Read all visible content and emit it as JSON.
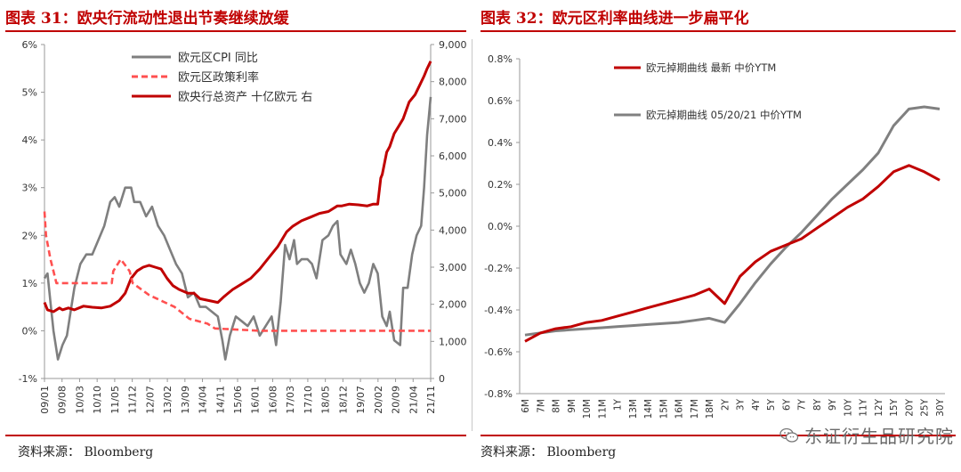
{
  "left": {
    "title": "图表 31：欧央行流动性退出节奏继续放缓",
    "source": "资料来源：  Bloomberg",
    "chart_data": {
      "type": "line",
      "left_axis": {
        "ticks": [
          "6%",
          "5%",
          "4%",
          "3%",
          "2%",
          "1%",
          "0%",
          "-1%"
        ],
        "range": [
          -1,
          6
        ]
      },
      "right_axis": {
        "ticks": [
          "9,000",
          "8,000",
          "7,000",
          "6,000",
          "5,000",
          "4,000",
          "3,000",
          "2,000",
          "1,000",
          "0"
        ],
        "range": [
          0,
          9000
        ]
      },
      "x_ticks": [
        "09/01",
        "09/08",
        "10/03",
        "10/10",
        "11/05",
        "11/12",
        "12/07",
        "13/02",
        "13/09",
        "14/04",
        "14/11",
        "15/06",
        "16/01",
        "16/08",
        "17/03",
        "17/10",
        "18/05",
        "18/12",
        "19/07",
        "20/02",
        "20/09",
        "21/04",
        "21/11"
      ],
      "x_range": [
        2009.0,
        2021.92
      ],
      "colors": {
        "cpi": "#7f7f7f",
        "policy_rate": "#ff5050",
        "assets": "#c00000"
      },
      "series": [
        {
          "name": "欧元区CPI 同比",
          "key": "cpi",
          "axis": "left",
          "style": "solid",
          "points": [
            [
              2009.0,
              1.1
            ],
            [
              2009.1,
              1.2
            ],
            [
              2009.2,
              0.6
            ],
            [
              2009.3,
              0.0
            ],
            [
              2009.45,
              -0.6
            ],
            [
              2009.6,
              -0.3
            ],
            [
              2009.75,
              -0.1
            ],
            [
              2009.9,
              0.5
            ],
            [
              2010.0,
              0.9
            ],
            [
              2010.2,
              1.4
            ],
            [
              2010.4,
              1.6
            ],
            [
              2010.6,
              1.6
            ],
            [
              2010.8,
              1.9
            ],
            [
              2011.0,
              2.2
            ],
            [
              2011.2,
              2.7
            ],
            [
              2011.35,
              2.8
            ],
            [
              2011.5,
              2.6
            ],
            [
              2011.7,
              3.0
            ],
            [
              2011.9,
              3.0
            ],
            [
              2012.0,
              2.7
            ],
            [
              2012.2,
              2.7
            ],
            [
              2012.4,
              2.4
            ],
            [
              2012.6,
              2.6
            ],
            [
              2012.8,
              2.2
            ],
            [
              2013.0,
              2.0
            ],
            [
              2013.2,
              1.7
            ],
            [
              2013.4,
              1.4
            ],
            [
              2013.6,
              1.2
            ],
            [
              2013.8,
              0.7
            ],
            [
              2014.0,
              0.8
            ],
            [
              2014.2,
              0.5
            ],
            [
              2014.4,
              0.5
            ],
            [
              2014.6,
              0.4
            ],
            [
              2014.8,
              0.3
            ],
            [
              2014.95,
              -0.2
            ],
            [
              2015.05,
              -0.6
            ],
            [
              2015.2,
              -0.1
            ],
            [
              2015.4,
              0.3
            ],
            [
              2015.6,
              0.2
            ],
            [
              2015.8,
              0.1
            ],
            [
              2016.0,
              0.3
            ],
            [
              2016.2,
              -0.1
            ],
            [
              2016.4,
              0.1
            ],
            [
              2016.6,
              0.3
            ],
            [
              2016.75,
              -0.3
            ],
            [
              2016.9,
              0.6
            ],
            [
              2017.05,
              1.8
            ],
            [
              2017.2,
              1.5
            ],
            [
              2017.35,
              1.9
            ],
            [
              2017.45,
              1.4
            ],
            [
              2017.6,
              1.5
            ],
            [
              2017.8,
              1.5
            ],
            [
              2017.95,
              1.4
            ],
            [
              2018.1,
              1.1
            ],
            [
              2018.3,
              1.9
            ],
            [
              2018.5,
              2.0
            ],
            [
              2018.65,
              2.2
            ],
            [
              2018.8,
              2.3
            ],
            [
              2018.9,
              1.6
            ],
            [
              2019.1,
              1.4
            ],
            [
              2019.25,
              1.7
            ],
            [
              2019.4,
              1.4
            ],
            [
              2019.55,
              1.0
            ],
            [
              2019.7,
              0.8
            ],
            [
              2019.85,
              1.0
            ],
            [
              2020.0,
              1.4
            ],
            [
              2020.15,
              1.2
            ],
            [
              2020.3,
              0.3
            ],
            [
              2020.45,
              0.1
            ],
            [
              2020.55,
              0.4
            ],
            [
              2020.7,
              -0.2
            ],
            [
              2020.9,
              -0.3
            ],
            [
              2021.0,
              0.9
            ],
            [
              2021.15,
              0.9
            ],
            [
              2021.3,
              1.6
            ],
            [
              2021.45,
              2.0
            ],
            [
              2021.6,
              2.2
            ],
            [
              2021.7,
              3.0
            ],
            [
              2021.8,
              4.1
            ],
            [
              2021.92,
              4.9
            ]
          ]
        },
        {
          "name": "欧元区政策利率",
          "key": "policy_rate",
          "axis": "left",
          "style": "dashed",
          "points": [
            [
              2009.0,
              2.5
            ],
            [
              2009.05,
              2.0
            ],
            [
              2009.2,
              1.5
            ],
            [
              2009.3,
              1.25
            ],
            [
              2009.4,
              1.0
            ],
            [
              2011.25,
              1.0
            ],
            [
              2011.3,
              1.25
            ],
            [
              2011.55,
              1.5
            ],
            [
              2011.85,
              1.25
            ],
            [
              2011.95,
              1.0
            ],
            [
              2012.5,
              0.75
            ],
            [
              2013.35,
              0.5
            ],
            [
              2013.85,
              0.25
            ],
            [
              2014.45,
              0.15
            ],
            [
              2014.7,
              0.05
            ],
            [
              2016.2,
              0.0
            ],
            [
              2021.92,
              0.0
            ]
          ]
        },
        {
          "name": "欧央行总资产 十亿欧元 右",
          "key": "assets",
          "axis": "right",
          "style": "solid",
          "points": [
            [
              2009.0,
              2050
            ],
            [
              2009.1,
              1850
            ],
            [
              2009.3,
              1800
            ],
            [
              2009.5,
              1900
            ],
            [
              2009.6,
              1850
            ],
            [
              2009.8,
              1900
            ],
            [
              2010.0,
              1850
            ],
            [
              2010.3,
              1950
            ],
            [
              2010.6,
              1920
            ],
            [
              2010.9,
              1900
            ],
            [
              2011.2,
              1950
            ],
            [
              2011.5,
              2100
            ],
            [
              2011.7,
              2300
            ],
            [
              2011.9,
              2700
            ],
            [
              2012.1,
              2900
            ],
            [
              2012.3,
              3000
            ],
            [
              2012.5,
              3050
            ],
            [
              2012.7,
              3000
            ],
            [
              2012.9,
              2950
            ],
            [
              2013.1,
              2700
            ],
            [
              2013.3,
              2500
            ],
            [
              2013.5,
              2400
            ],
            [
              2013.8,
              2300
            ],
            [
              2014.0,
              2300
            ],
            [
              2014.2,
              2150
            ],
            [
              2014.5,
              2100
            ],
            [
              2014.8,
              2050
            ],
            [
              2015.0,
              2200
            ],
            [
              2015.3,
              2400
            ],
            [
              2015.6,
              2550
            ],
            [
              2015.9,
              2700
            ],
            [
              2016.2,
              2950
            ],
            [
              2016.5,
              3250
            ],
            [
              2016.8,
              3550
            ],
            [
              2017.1,
              3950
            ],
            [
              2017.3,
              4100
            ],
            [
              2017.6,
              4250
            ],
            [
              2017.9,
              4350
            ],
            [
              2018.2,
              4450
            ],
            [
              2018.5,
              4500
            ],
            [
              2018.8,
              4650
            ],
            [
              2018.95,
              4650
            ],
            [
              2019.2,
              4700
            ],
            [
              2019.5,
              4680
            ],
            [
              2019.8,
              4650
            ],
            [
              2020.0,
              4700
            ],
            [
              2020.15,
              4700
            ],
            [
              2020.25,
              5400
            ],
            [
              2020.3,
              5500
            ],
            [
              2020.45,
              6100
            ],
            [
              2020.55,
              6250
            ],
            [
              2020.7,
              6600
            ],
            [
              2020.85,
              6800
            ],
            [
              2021.0,
              7000
            ],
            [
              2021.2,
              7450
            ],
            [
              2021.4,
              7650
            ],
            [
              2021.55,
              7900
            ],
            [
              2021.7,
              8150
            ],
            [
              2021.8,
              8350
            ],
            [
              2021.92,
              8550
            ]
          ]
        }
      ]
    }
  },
  "right": {
    "title": "图表 32：欧元区利率曲线进一步扁平化",
    "source": "资料来源：  Bloomberg",
    "chart_data": {
      "type": "line",
      "y_ticks": [
        "0.8%",
        "0.6%",
        "0.4%",
        "0.2%",
        "0.0%",
        "-0.2%",
        "-0.4%",
        "-0.6%",
        "-0.8%"
      ],
      "y_range": [
        -0.8,
        0.8
      ],
      "categories": [
        "6M",
        "7M",
        "8M",
        "9M",
        "10M",
        "11M",
        "1Y",
        "13M",
        "14M",
        "15M",
        "16M",
        "17M",
        "18M",
        "2Y",
        "3Y",
        "4Y",
        "5Y",
        "6Y",
        "7Y",
        "8Y",
        "9Y",
        "10Y",
        "11Y",
        "12Y",
        "15Y",
        "20Y",
        "25Y",
        "30Y"
      ],
      "colors": {
        "latest": "#c00000",
        "prior": "#808080"
      },
      "series": [
        {
          "name": "欧元掉期曲线 最新 中价YTM",
          "key": "latest",
          "values": [
            -0.55,
            -0.51,
            -0.49,
            -0.48,
            -0.46,
            -0.45,
            -0.43,
            -0.41,
            -0.39,
            -0.37,
            -0.35,
            -0.33,
            -0.3,
            -0.37,
            -0.24,
            -0.17,
            -0.12,
            -0.09,
            -0.06,
            -0.01,
            0.04,
            0.09,
            0.13,
            0.19,
            0.26,
            0.29,
            0.26,
            0.22
          ]
        },
        {
          "name": "欧元掉期曲线 05/20/21 中价YTM",
          "key": "prior",
          "values": [
            -0.52,
            -0.51,
            -0.5,
            -0.495,
            -0.49,
            -0.485,
            -0.48,
            -0.475,
            -0.47,
            -0.465,
            -0.46,
            -0.45,
            -0.44,
            -0.46,
            -0.37,
            -0.27,
            -0.18,
            -0.1,
            -0.03,
            0.05,
            0.13,
            0.2,
            0.27,
            0.35,
            0.48,
            0.56,
            0.57,
            0.56
          ]
        }
      ]
    }
  },
  "watermark": "东证衍生品研究院"
}
